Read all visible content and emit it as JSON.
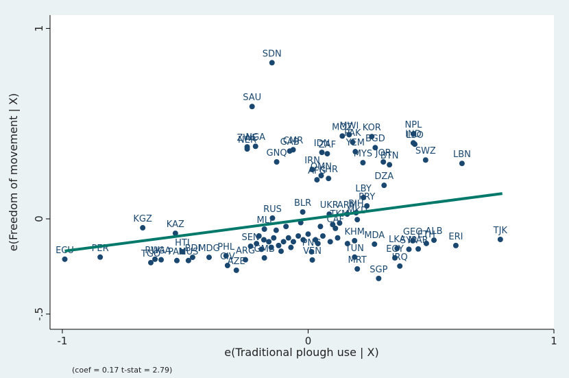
{
  "chart_data": {
    "type": "scatter",
    "x_label": "e(Traditional plough use | X)",
    "y_label": "e(Freedom of movement | X)",
    "note": "(coef = 0.17 t-stat = 2.79)",
    "xlim": [
      -1.05,
      1.0
    ],
    "ylim": [
      -0.58,
      1.07
    ],
    "xticks": [
      -1,
      0,
      1
    ],
    "yticks": [
      {
        "value": -0.5,
        "label": "-.5"
      },
      0,
      1
    ],
    "color": "#1a476f",
    "fit_color": "#00796b",
    "points": {
      "labels": [
        "SDN",
        "SAU",
        "ZWE",
        "NGA",
        "NER",
        "CMR",
        "GAB",
        "GNQ",
        "IRN",
        "IDN",
        "ZAF",
        "MOZ",
        "MWI",
        "KOR",
        "BGD",
        "PAK",
        "YEM",
        "MYS",
        "JOR",
        "BTN",
        "NPL",
        "IND",
        "LSO",
        "SWZ",
        "LBN",
        "OMN",
        "AFG",
        "KHR",
        "DZA",
        "LBY",
        "PRY",
        "UKR",
        "ARM",
        "BIH",
        "BLR",
        "RUS",
        "MKD",
        "TKM",
        "GEO",
        "ETH",
        "ALB",
        "ERI",
        "TJK",
        "KGZ",
        "KAZ",
        "HTI",
        "BDI",
        "MDG",
        "RWA",
        "TGO",
        "UGA",
        "PAN",
        "MUS",
        "PER",
        "ECU",
        "PHL",
        "CIV",
        "AZE",
        "ARG",
        "GMB",
        "MRT",
        "SGP",
        "TUN",
        "VEN",
        "PNG",
        "EGY",
        "IRQ",
        "LKA",
        "MAR",
        "SYR",
        "MDA",
        "KHM",
        "CAF",
        "MLI",
        "SEN",
        null,
        null,
        null,
        null,
        null,
        null,
        null,
        null,
        null,
        null,
        null,
        null,
        null,
        null,
        null,
        null,
        null,
        null,
        null,
        null,
        null,
        null,
        null,
        null,
        null,
        null,
        null
      ],
      "x": [
        -0.147,
        -0.228,
        -0.248,
        -0.214,
        -0.248,
        -0.061,
        -0.075,
        -0.128,
        0.017,
        0.056,
        0.078,
        0.139,
        0.167,
        0.259,
        0.273,
        0.181,
        0.192,
        0.223,
        0.306,
        0.331,
        0.428,
        0.428,
        0.434,
        0.478,
        0.626,
        0.053,
        0.036,
        0.083,
        0.309,
        0.225,
        0.239,
        0.086,
        0.159,
        0.195,
        -0.022,
        -0.145,
        0.2,
        0.128,
        0.426,
        0.481,
        0.512,
        0.601,
        0.782,
        -0.673,
        -0.54,
        -0.512,
        -0.47,
        -0.403,
        -0.623,
        -0.64,
        -0.598,
        -0.534,
        -0.487,
        -0.846,
        -0.99,
        -0.334,
        -0.328,
        -0.292,
        -0.255,
        -0.178,
        0.2,
        0.287,
        0.189,
        0.017,
        0.014,
        0.353,
        0.373,
        0.362,
        0.448,
        0.41,
        0.27,
        0.189,
        0.111,
        -0.178,
        -0.234,
        -0.2,
        -0.18,
        -0.16,
        -0.14,
        -0.12,
        -0.1,
        -0.08,
        -0.06,
        -0.04,
        -0.02,
        0.0,
        0.03,
        0.06,
        0.09,
        -0.21,
        -0.19,
        -0.15,
        -0.11,
        -0.07,
        0.04,
        0.12,
        0.16,
        -0.13,
        -0.09,
        -0.03,
        0.05,
        0.1
      ],
      "y": [
        0.82,
        0.59,
        0.378,
        0.381,
        0.367,
        0.363,
        0.356,
        0.299,
        0.259,
        0.349,
        0.342,
        0.435,
        0.442,
        0.432,
        0.374,
        0.403,
        0.353,
        0.295,
        0.299,
        0.284,
        0.446,
        0.399,
        0.392,
        0.309,
        0.291,
        0.227,
        0.205,
        0.212,
        0.176,
        0.112,
        0.068,
        0.025,
        0.025,
        0.032,
        0.036,
        0.004,
        -0.004,
        -0.022,
        -0.115,
        -0.129,
        -0.112,
        -0.14,
        -0.108,
        -0.047,
        -0.076,
        -0.173,
        -0.202,
        -0.202,
        -0.212,
        -0.23,
        -0.215,
        -0.219,
        -0.219,
        -0.201,
        -0.212,
        -0.194,
        -0.245,
        -0.27,
        -0.215,
        -0.205,
        -0.263,
        -0.313,
        -0.201,
        -0.216,
        -0.173,
        -0.205,
        -0.248,
        -0.155,
        -0.158,
        -0.16,
        -0.133,
        -0.115,
        -0.05,
        -0.054,
        -0.144,
        -0.09,
        -0.11,
        -0.12,
        -0.1,
        -0.14,
        -0.12,
        -0.1,
        -0.12,
        -0.09,
        -0.11,
        -0.08,
        -0.11,
        -0.09,
        -0.12,
        -0.13,
        -0.16,
        -0.15,
        -0.17,
        -0.15,
        -0.13,
        -0.1,
        -0.13,
        -0.06,
        -0.04,
        -0.02,
        -0.04,
        -0.03
      ]
    },
    "fit": {
      "x": [
        -0.99,
        0.79
      ],
      "y": [
        -0.169,
        0.133
      ]
    }
  }
}
